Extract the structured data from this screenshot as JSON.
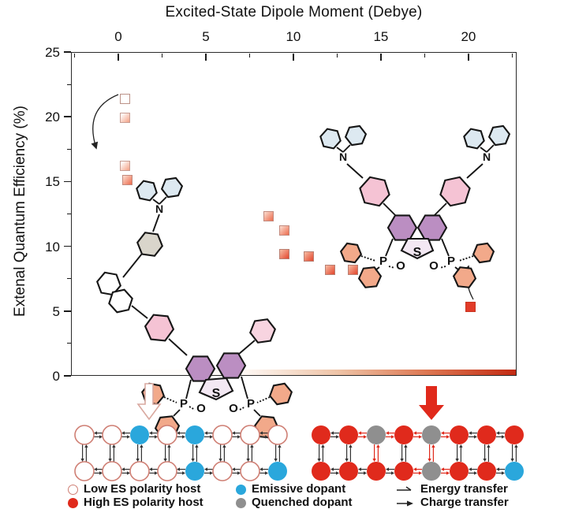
{
  "chart_data": {
    "type": "scatter",
    "title": "",
    "xlabel": "Excited-State Dipole Moment (Debye)",
    "ylabel": "Extenal Quantum Efficiency (%)",
    "xlim": [
      -2.7,
      22.75
    ],
    "ylim": [
      0,
      25
    ],
    "x_ticks": [
      0,
      5,
      10,
      15,
      20
    ],
    "x_minor_ticks": [
      -2.5,
      2.5,
      7.5,
      12.5,
      17.5,
      22.5
    ],
    "y_ticks": [
      25,
      20,
      15,
      10,
      5,
      0
    ],
    "y_minor_ticks": [
      2.5,
      7.5,
      12.5,
      17.5,
      22.5
    ],
    "grid": false,
    "legend_position": "none",
    "marker": "square",
    "points": [
      {
        "x": 0.4,
        "y": 21.4,
        "variant": "open"
      },
      {
        "x": 0.4,
        "y": 19.9,
        "variant": "light"
      },
      {
        "x": 0.4,
        "y": 16.2,
        "variant": "light"
      },
      {
        "x": 0.5,
        "y": 15.1,
        "variant": "medium"
      },
      {
        "x": 8.6,
        "y": 12.3,
        "variant": "medium"
      },
      {
        "x": 9.5,
        "y": 11.2,
        "variant": "medium"
      },
      {
        "x": 9.5,
        "y": 9.4,
        "variant": "dark"
      },
      {
        "x": 10.9,
        "y": 9.2,
        "variant": "dark"
      },
      {
        "x": 12.1,
        "y": 8.2,
        "variant": "dark"
      },
      {
        "x": 13.4,
        "y": 8.2,
        "variant": "dark"
      },
      {
        "x": 20.1,
        "y": 5.3,
        "variant": "solid"
      }
    ],
    "annotations": [
      "curved arrow pointing down-left beside low-dipole cluster",
      "curved arrow pointing up beside 20-Debye point",
      "white-to-red polarity gradient bar along bottom axis"
    ]
  },
  "molecules": {
    "nitrogen": "N",
    "sulfur": "S",
    "phosphorus": "P",
    "oxygen": "O"
  },
  "lattices": {
    "left": [
      [
        "open",
        "open",
        "blue",
        "open",
        "blue",
        "open",
        "open",
        "open"
      ],
      [
        "open",
        "open",
        "open",
        "open",
        "blue",
        "open",
        "open",
        "blue"
      ]
    ],
    "right": [
      [
        "red",
        "red",
        "gray",
        "red",
        "gray",
        "red",
        "red",
        "red"
      ],
      [
        "red",
        "red",
        "red",
        "red",
        "gray",
        "red",
        "red",
        "blue"
      ]
    ]
  },
  "legend": {
    "items": [
      {
        "symbol": "circle-open",
        "label": "Low ES polarity host"
      },
      {
        "symbol": "circle-red",
        "label": "High ES polarity host"
      },
      {
        "symbol": "circle-blue",
        "label": "Emissive dopant"
      },
      {
        "symbol": "circle-gray",
        "label": "Quenched dopant"
      },
      {
        "symbol": "arrow-energy",
        "label": "Energy transfer"
      },
      {
        "symbol": "arrow-charge",
        "label": "Charge transfer"
      }
    ]
  },
  "colors": {
    "marker_open_border": "#bb9288",
    "marker_light_from": "#ffffff",
    "marker_light_to": "#f4a68c",
    "marker_medium_from": "#fbdfd2",
    "marker_medium_to": "#ec6a4c",
    "marker_dark_from": "#f7bda4",
    "marker_dark_to": "#e2452c",
    "marker_solid": "#e23b28",
    "host_open_stroke": "#cf7f74",
    "host_red": "#e02a1c",
    "dopant_blue": "#2aa7dc",
    "dopant_gray": "#8f8f8f",
    "arrow_red": "#e0291b",
    "gradient_bar_end": "#c22a12",
    "purple_core": "#bb8ec2",
    "pink_ring": "#f5c3d4",
    "lightpink_ring": "#f8d4e0",
    "peach_ring": "#f2a98a",
    "carbazole_blue": "#dde9f1",
    "gray_ring": "#d9d5cb"
  }
}
